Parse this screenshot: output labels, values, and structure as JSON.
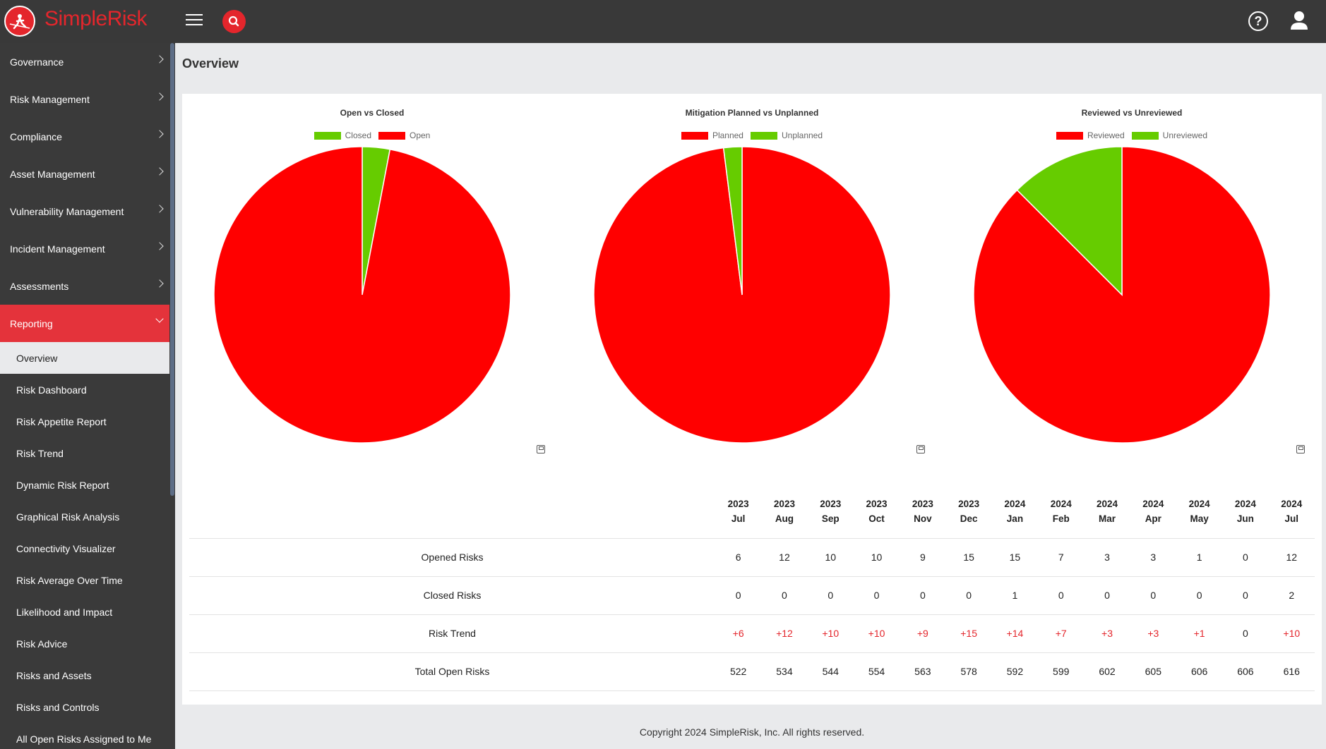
{
  "app": {
    "brand": "SimpleRisk",
    "help_label": "?"
  },
  "colors": {
    "accent": "#e4262c",
    "red": "#ff0000",
    "green": "#66cc00"
  },
  "sidebar": {
    "items": [
      {
        "label": "Governance"
      },
      {
        "label": "Risk Management"
      },
      {
        "label": "Compliance"
      },
      {
        "label": "Asset Management"
      },
      {
        "label": "Vulnerability Management"
      },
      {
        "label": "Incident Management"
      },
      {
        "label": "Assessments"
      },
      {
        "label": "Reporting"
      }
    ],
    "subitems": [
      {
        "label": "Overview"
      },
      {
        "label": "Risk Dashboard"
      },
      {
        "label": "Risk Appetite Report"
      },
      {
        "label": "Risk Trend"
      },
      {
        "label": "Dynamic Risk Report"
      },
      {
        "label": "Graphical Risk Analysis"
      },
      {
        "label": "Connectivity Visualizer"
      },
      {
        "label": "Risk Average Over Time"
      },
      {
        "label": "Likelihood and Impact"
      },
      {
        "label": "Risk Advice"
      },
      {
        "label": "Risks and Assets"
      },
      {
        "label": "Risks and Controls"
      },
      {
        "label": "All Open Risks Assigned to Me"
      }
    ]
  },
  "page": {
    "title": "Overview"
  },
  "chart_data": [
    {
      "type": "pie",
      "title": "Open vs Closed",
      "legend": [
        "Closed",
        "Open"
      ],
      "slices": [
        {
          "label": "Closed",
          "value": 3,
          "color": "#66cc00"
        },
        {
          "label": "Open",
          "value": 97,
          "color": "#ff0000"
        }
      ]
    },
    {
      "type": "pie",
      "title": "Mitigation Planned vs Unplanned",
      "legend": [
        "Planned",
        "Unplanned"
      ],
      "slices": [
        {
          "label": "Planned",
          "value": 98,
          "color": "#ff0000"
        },
        {
          "label": "Unplanned",
          "value": 2,
          "color": "#66cc00"
        }
      ]
    },
    {
      "type": "pie",
      "title": "Reviewed vs Unreviewed",
      "legend": [
        "Reviewed",
        "Unreviewed"
      ],
      "slices": [
        {
          "label": "Reviewed",
          "value": 87.5,
          "color": "#ff0000"
        },
        {
          "label": "Unreviewed",
          "value": 12.5,
          "color": "#66cc00"
        }
      ]
    }
  ],
  "table": {
    "months": [
      [
        "2023",
        "Jul"
      ],
      [
        "2023",
        "Aug"
      ],
      [
        "2023",
        "Sep"
      ],
      [
        "2023",
        "Oct"
      ],
      [
        "2023",
        "Nov"
      ],
      [
        "2023",
        "Dec"
      ],
      [
        "2024",
        "Jan"
      ],
      [
        "2024",
        "Feb"
      ],
      [
        "2024",
        "Mar"
      ],
      [
        "2024",
        "Apr"
      ],
      [
        "2024",
        "May"
      ],
      [
        "2024",
        "Jun"
      ],
      [
        "2024",
        "Jul"
      ]
    ],
    "rows": [
      {
        "label": "Opened Risks",
        "values": [
          "6",
          "12",
          "10",
          "10",
          "9",
          "15",
          "15",
          "7",
          "3",
          "3",
          "1",
          "0",
          "12"
        ]
      },
      {
        "label": "Closed Risks",
        "values": [
          "0",
          "0",
          "0",
          "0",
          "0",
          "0",
          "1",
          "0",
          "0",
          "0",
          "0",
          "0",
          "2"
        ]
      },
      {
        "label": "Risk Trend",
        "values": [
          "+6",
          "+12",
          "+10",
          "+10",
          "+9",
          "+15",
          "+14",
          "+7",
          "+3",
          "+3",
          "+1",
          "0",
          "+10"
        ]
      },
      {
        "label": "Total Open Risks",
        "values": [
          "522",
          "534",
          "544",
          "554",
          "563",
          "578",
          "592",
          "599",
          "602",
          "605",
          "606",
          "606",
          "616"
        ]
      }
    ]
  },
  "footer": {
    "text": "Copyright 2024 SimpleRisk, Inc. All rights reserved."
  }
}
